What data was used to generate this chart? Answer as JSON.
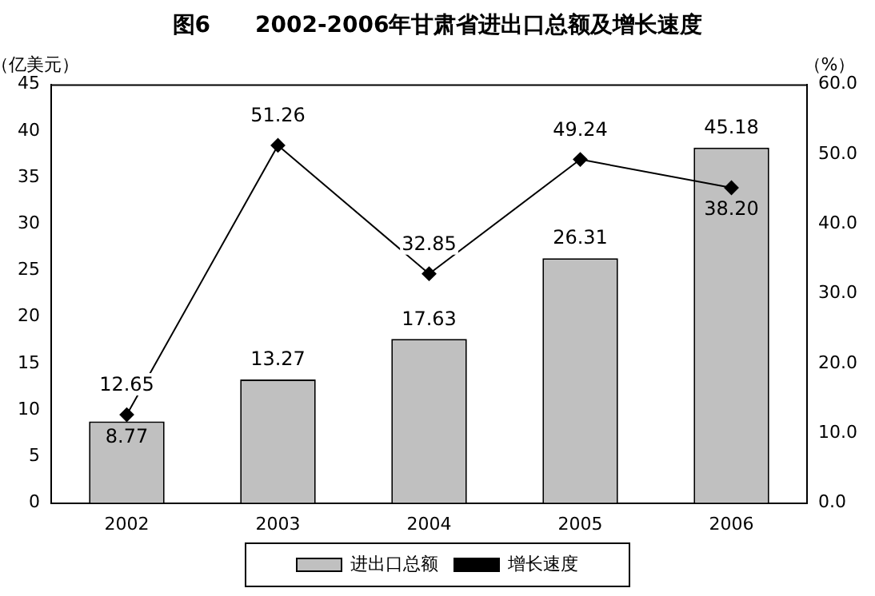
{
  "chart_data": {
    "type": "bar",
    "title": "图6　　2002-2006年甘肃省进出口总额及增长速度",
    "ylabel": "（亿美元）",
    "y2label": "（%）",
    "categories": [
      "2002",
      "2003",
      "2004",
      "2005",
      "2006"
    ],
    "series": [
      {
        "name": "进出口总额",
        "color": "#c0c0c0",
        "values": [
          8.77,
          13.27,
          17.63,
          26.31,
          38.2
        ],
        "value_labels": [
          "8.77",
          "13.27",
          "17.63",
          "26.31",
          "38.20"
        ]
      },
      {
        "name": "增长速度",
        "type": "line",
        "axis": "y2",
        "color": "#000000",
        "values": [
          12.65,
          51.26,
          32.85,
          49.24,
          45.18
        ],
        "value_labels": [
          "12.65",
          "51.26",
          "32.85",
          "49.24",
          "45.18"
        ]
      }
    ],
    "ylim": [
      0,
      45
    ],
    "yticks": [
      0,
      5,
      10,
      15,
      20,
      25,
      30,
      35,
      40,
      45
    ],
    "y2lim": [
      0,
      60
    ],
    "y2ticks": [
      {
        "value": 0,
        "label": "0.0"
      },
      {
        "value": 10,
        "label": "10.0"
      },
      {
        "value": 20,
        "label": "20.0"
      },
      {
        "value": 30,
        "label": "30.0"
      },
      {
        "value": 40,
        "label": "40.0"
      },
      {
        "value": 50,
        "label": "50.0"
      },
      {
        "value": 60,
        "label": "60.0"
      }
    ],
    "grid": false,
    "legend": "bottom",
    "marker": "diamond",
    "line_style": "solid"
  }
}
